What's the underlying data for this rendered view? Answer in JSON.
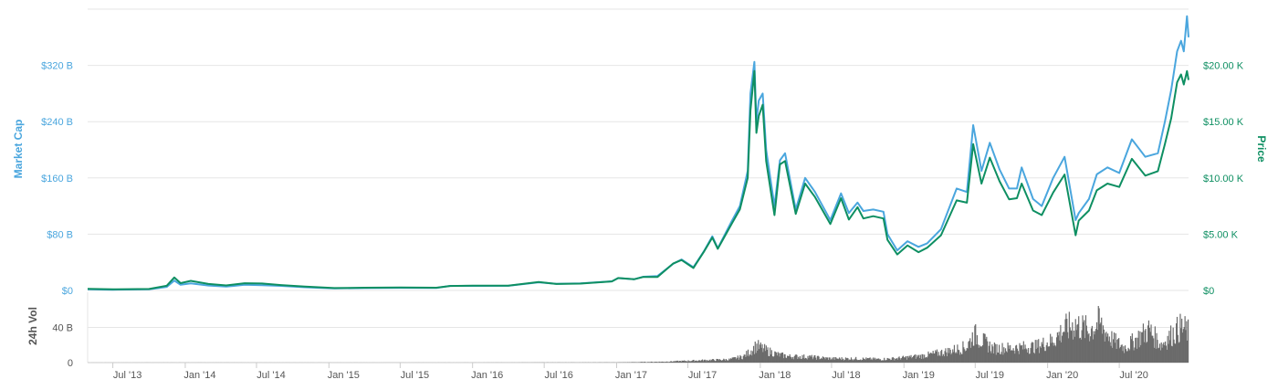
{
  "chart_data": {
    "type": "line",
    "left_axis_title": "Market Cap",
    "right_axis_title": "Price",
    "volume_axis_title": "24h Vol",
    "colors": {
      "market_cap": "#4aa6de",
      "price": "#0e8f62",
      "volume": "#6b6b6b",
      "grid": "#e6e6e6"
    },
    "x_range": [
      "2013-04-28",
      "2020-12-24"
    ],
    "market_cap_ticks": [
      "$0",
      "$80 B",
      "$160 B",
      "$240 B",
      "$320 B"
    ],
    "market_cap_tick_values": [
      0,
      80,
      160,
      240,
      320
    ],
    "market_cap_ylim": [
      0,
      400
    ],
    "price_ticks": [
      "$0",
      "$5.00 K",
      "$10.00 K",
      "$15.00 K",
      "$20.00 K"
    ],
    "price_tick_values": [
      0,
      5000,
      10000,
      15000,
      20000
    ],
    "price_ylim": [
      0,
      25000
    ],
    "volume_ticks": [
      "0",
      "40 B"
    ],
    "volume_tick_values": [
      0,
      40
    ],
    "volume_ylim": [
      0,
      80
    ],
    "x_ticks": [
      {
        "label": "Jul '13",
        "date": "2013-07-01"
      },
      {
        "label": "Jan '14",
        "date": "2014-01-01"
      },
      {
        "label": "Jul '14",
        "date": "2014-07-01"
      },
      {
        "label": "Jan '15",
        "date": "2015-01-01"
      },
      {
        "label": "Jul '15",
        "date": "2015-07-01"
      },
      {
        "label": "Jan '16",
        "date": "2016-01-01"
      },
      {
        "label": "Jul '16",
        "date": "2016-07-01"
      },
      {
        "label": "Jan '17",
        "date": "2017-01-01"
      },
      {
        "label": "Jul '17",
        "date": "2017-07-01"
      },
      {
        "label": "Jan '18",
        "date": "2018-01-01"
      },
      {
        "label": "Jul '18",
        "date": "2018-07-01"
      },
      {
        "label": "Jan '19",
        "date": "2019-01-01"
      },
      {
        "label": "Jul '19",
        "date": "2019-07-01"
      },
      {
        "label": "Jan '20",
        "date": "2020-01-01"
      },
      {
        "label": "Jul '20",
        "date": "2020-07-01"
      }
    ],
    "series": [
      {
        "key": "market_cap",
        "unit": "B USD",
        "points": [
          [
            "2013-04-28",
            1.5
          ],
          [
            "2013-07-01",
            1.1
          ],
          [
            "2013-10-01",
            1.6
          ],
          [
            "2013-11-15",
            5.0
          ],
          [
            "2013-12-04",
            14.0
          ],
          [
            "2013-12-20",
            8.0
          ],
          [
            "2014-01-15",
            10.0
          ],
          [
            "2014-03-01",
            7.0
          ],
          [
            "2014-04-15",
            5.5
          ],
          [
            "2014-06-01",
            8.0
          ],
          [
            "2014-07-15",
            7.5
          ],
          [
            "2014-09-01",
            6.5
          ],
          [
            "2014-11-01",
            4.5
          ],
          [
            "2015-01-15",
            3.0
          ],
          [
            "2015-04-01",
            3.4
          ],
          [
            "2015-07-01",
            3.8
          ],
          [
            "2015-10-01",
            3.5
          ],
          [
            "2015-11-05",
            6.5
          ],
          [
            "2016-01-01",
            6.5
          ],
          [
            "2016-04-01",
            6.6
          ],
          [
            "2016-06-17",
            11.5
          ],
          [
            "2016-08-01",
            9.5
          ],
          [
            "2016-10-01",
            10.0
          ],
          [
            "2016-12-20",
            13.0
          ],
          [
            "2017-01-05",
            17.5
          ],
          [
            "2017-02-15",
            16.0
          ],
          [
            "2017-03-10",
            19.5
          ],
          [
            "2017-04-15",
            20.5
          ],
          [
            "2017-05-25",
            38.0
          ],
          [
            "2017-06-15",
            44.0
          ],
          [
            "2017-07-15",
            33.0
          ],
          [
            "2017-08-10",
            55.0
          ],
          [
            "2017-09-01",
            77.0
          ],
          [
            "2017-09-15",
            60.0
          ],
          [
            "2017-10-20",
            98.0
          ],
          [
            "2017-11-10",
            120.0
          ],
          [
            "2017-11-30",
            170.0
          ],
          [
            "2017-12-07",
            280.0
          ],
          [
            "2017-12-17",
            325.0
          ],
          [
            "2017-12-22",
            240.0
          ],
          [
            "2017-12-28",
            270.0
          ],
          [
            "2018-01-07",
            280.0
          ],
          [
            "2018-01-16",
            200.0
          ],
          [
            "2018-02-06",
            120.0
          ],
          [
            "2018-02-20",
            185.0
          ],
          [
            "2018-03-05",
            195.0
          ],
          [
            "2018-04-01",
            115.0
          ],
          [
            "2018-04-25",
            160.0
          ],
          [
            "2018-05-20",
            140.0
          ],
          [
            "2018-06-28",
            100.0
          ],
          [
            "2018-07-25",
            138.0
          ],
          [
            "2018-08-14",
            110.0
          ],
          [
            "2018-09-05",
            125.0
          ],
          [
            "2018-09-20",
            113.0
          ],
          [
            "2018-10-15",
            115.0
          ],
          [
            "2018-11-10",
            112.0
          ],
          [
            "2018-11-20",
            80.0
          ],
          [
            "2018-12-15",
            57.0
          ],
          [
            "2019-01-10",
            70.0
          ],
          [
            "2019-02-07",
            62.0
          ],
          [
            "2019-03-01",
            67.0
          ],
          [
            "2019-04-05",
            87.0
          ],
          [
            "2019-05-15",
            145.0
          ],
          [
            "2019-06-10",
            140.0
          ],
          [
            "2019-06-26",
            235.0
          ],
          [
            "2019-07-17",
            170.0
          ],
          [
            "2019-08-07",
            210.0
          ],
          [
            "2019-09-01",
            172.0
          ],
          [
            "2019-09-25",
            145.0
          ],
          [
            "2019-10-15",
            145.0
          ],
          [
            "2019-10-27",
            175.0
          ],
          [
            "2019-11-25",
            130.0
          ],
          [
            "2019-12-17",
            120.0
          ],
          [
            "2020-01-15",
            160.0
          ],
          [
            "2020-02-13",
            190.0
          ],
          [
            "2020-03-12",
            100.0
          ],
          [
            "2020-03-20",
            110.0
          ],
          [
            "2020-04-15",
            130.0
          ],
          [
            "2020-05-05",
            165.0
          ],
          [
            "2020-06-01",
            175.0
          ],
          [
            "2020-07-01",
            167.0
          ],
          [
            "2020-08-02",
            215.0
          ],
          [
            "2020-09-05",
            190.0
          ],
          [
            "2020-10-07",
            195.0
          ],
          [
            "2020-10-25",
            240.0
          ],
          [
            "2020-11-10",
            285.0
          ],
          [
            "2020-11-25",
            340.0
          ],
          [
            "2020-12-05",
            355.0
          ],
          [
            "2020-12-12",
            340.0
          ],
          [
            "2020-12-20",
            390.0
          ],
          [
            "2020-12-24",
            360.0
          ]
        ]
      },
      {
        "key": "price",
        "unit": "USD",
        "points": [
          [
            "2013-04-28",
            135
          ],
          [
            "2013-07-01",
            95
          ],
          [
            "2013-10-01",
            130
          ],
          [
            "2013-11-15",
            420
          ],
          [
            "2013-12-04",
            1150
          ],
          [
            "2013-12-20",
            650
          ],
          [
            "2014-01-15",
            850
          ],
          [
            "2014-03-01",
            580
          ],
          [
            "2014-04-15",
            450
          ],
          [
            "2014-06-01",
            640
          ],
          [
            "2014-07-15",
            620
          ],
          [
            "2014-09-01",
            480
          ],
          [
            "2014-11-01",
            340
          ],
          [
            "2015-01-15",
            210
          ],
          [
            "2015-04-01",
            240
          ],
          [
            "2015-07-01",
            260
          ],
          [
            "2015-10-01",
            240
          ],
          [
            "2015-11-05",
            400
          ],
          [
            "2016-01-01",
            430
          ],
          [
            "2016-04-01",
            420
          ],
          [
            "2016-06-17",
            750
          ],
          [
            "2016-08-01",
            580
          ],
          [
            "2016-10-01",
            610
          ],
          [
            "2016-12-20",
            800
          ],
          [
            "2017-01-05",
            1100
          ],
          [
            "2017-02-15",
            1000
          ],
          [
            "2017-03-10",
            1200
          ],
          [
            "2017-04-15",
            1200
          ],
          [
            "2017-05-25",
            2400
          ],
          [
            "2017-06-15",
            2700
          ],
          [
            "2017-07-15",
            2000
          ],
          [
            "2017-08-10",
            3400
          ],
          [
            "2017-09-01",
            4700
          ],
          [
            "2017-09-15",
            3700
          ],
          [
            "2017-10-20",
            5900
          ],
          [
            "2017-11-10",
            7200
          ],
          [
            "2017-11-30",
            10000
          ],
          [
            "2017-12-07",
            16000
          ],
          [
            "2017-12-17",
            19500
          ],
          [
            "2017-12-22",
            14000
          ],
          [
            "2017-12-28",
            15500
          ],
          [
            "2018-01-07",
            16500
          ],
          [
            "2018-01-16",
            11500
          ],
          [
            "2018-02-06",
            6700
          ],
          [
            "2018-02-20",
            11200
          ],
          [
            "2018-03-05",
            11500
          ],
          [
            "2018-04-01",
            6800
          ],
          [
            "2018-04-25",
            9500
          ],
          [
            "2018-05-20",
            8300
          ],
          [
            "2018-06-28",
            5900
          ],
          [
            "2018-07-25",
            8200
          ],
          [
            "2018-08-14",
            6300
          ],
          [
            "2018-09-05",
            7400
          ],
          [
            "2018-09-20",
            6400
          ],
          [
            "2018-10-15",
            6600
          ],
          [
            "2018-11-10",
            6400
          ],
          [
            "2018-11-20",
            4500
          ],
          [
            "2018-12-15",
            3200
          ],
          [
            "2019-01-10",
            4000
          ],
          [
            "2019-02-07",
            3400
          ],
          [
            "2019-03-01",
            3800
          ],
          [
            "2019-04-05",
            4900
          ],
          [
            "2019-05-15",
            8000
          ],
          [
            "2019-06-10",
            7800
          ],
          [
            "2019-06-26",
            13000
          ],
          [
            "2019-07-17",
            9500
          ],
          [
            "2019-08-07",
            11800
          ],
          [
            "2019-09-01",
            9700
          ],
          [
            "2019-09-25",
            8100
          ],
          [
            "2019-10-15",
            8200
          ],
          [
            "2019-10-27",
            9500
          ],
          [
            "2019-11-25",
            7100
          ],
          [
            "2019-12-17",
            6700
          ],
          [
            "2020-01-15",
            8700
          ],
          [
            "2020-02-13",
            10300
          ],
          [
            "2020-03-12",
            4900
          ],
          [
            "2020-03-20",
            6200
          ],
          [
            "2020-04-15",
            7100
          ],
          [
            "2020-05-05",
            8900
          ],
          [
            "2020-06-01",
            9500
          ],
          [
            "2020-07-01",
            9200
          ],
          [
            "2020-08-02",
            11700
          ],
          [
            "2020-09-05",
            10200
          ],
          [
            "2020-10-07",
            10600
          ],
          [
            "2020-10-25",
            13000
          ],
          [
            "2020-11-10",
            15300
          ],
          [
            "2020-11-25",
            18500
          ],
          [
            "2020-12-05",
            19200
          ],
          [
            "2020-12-12",
            18300
          ],
          [
            "2020-12-20",
            19500
          ],
          [
            "2020-12-24",
            18700
          ]
        ]
      },
      {
        "key": "volume",
        "unit": "B USD",
        "points": [
          [
            "2013-04-28",
            0.02
          ],
          [
            "2014-01-01",
            0.05
          ],
          [
            "2015-01-01",
            0.03
          ],
          [
            "2016-01-01",
            0.05
          ],
          [
            "2017-01-01",
            0.2
          ],
          [
            "2017-05-01",
            1.0
          ],
          [
            "2017-08-01",
            2.5
          ],
          [
            "2017-10-15",
            3.5
          ],
          [
            "2017-11-20",
            7.0
          ],
          [
            "2017-12-10",
            14.0
          ],
          [
            "2017-12-22",
            19.0
          ],
          [
            "2018-01-15",
            14.0
          ],
          [
            "2018-02-15",
            9.0
          ],
          [
            "2018-03-15",
            7.0
          ],
          [
            "2018-05-01",
            6.5
          ],
          [
            "2018-07-01",
            4.5
          ],
          [
            "2018-09-01",
            4.5
          ],
          [
            "2018-11-01",
            3.8
          ],
          [
            "2018-12-15",
            4.8
          ],
          [
            "2019-02-15",
            7.5
          ],
          [
            "2019-04-15",
            12.0
          ],
          [
            "2019-06-10",
            18.0
          ],
          [
            "2019-06-28",
            32.0
          ],
          [
            "2019-08-15",
            16.0
          ],
          [
            "2019-10-01",
            16.5
          ],
          [
            "2019-12-01",
            18.0
          ],
          [
            "2020-01-15",
            25.0
          ],
          [
            "2020-02-13",
            38.0
          ],
          [
            "2020-03-12",
            43.0
          ],
          [
            "2020-04-15",
            36.0
          ],
          [
            "2020-05-10",
            45.0
          ],
          [
            "2020-06-15",
            25.0
          ],
          [
            "2020-07-15",
            17.0
          ],
          [
            "2020-08-15",
            27.0
          ],
          [
            "2020-09-15",
            37.0
          ],
          [
            "2020-10-15",
            20.0
          ],
          [
            "2020-11-15",
            33.0
          ],
          [
            "2020-12-05",
            40.0
          ],
          [
            "2020-12-24",
            35.0
          ]
        ]
      }
    ]
  }
}
